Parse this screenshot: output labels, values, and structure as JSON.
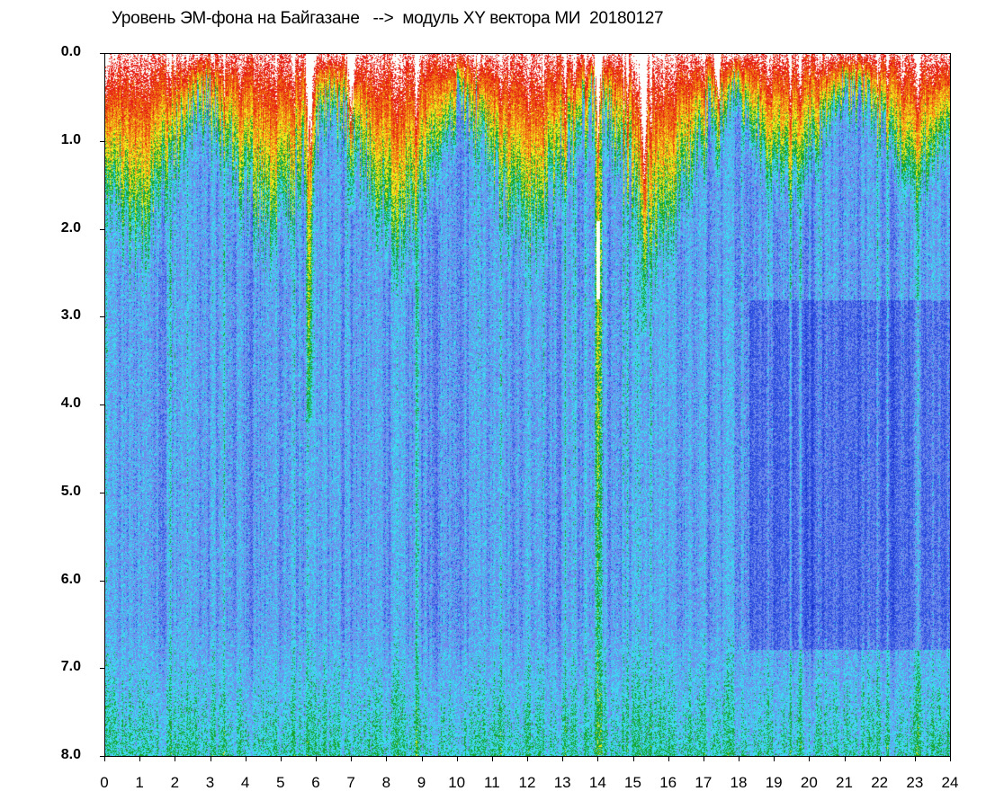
{
  "chart_data": {
    "type": "heatmap",
    "title": "Уровень ЭМ-фона на Байгазане   -->  модуль XY вектора МИ  20180127",
    "xlabel": "",
    "ylabel": "",
    "xlim": [
      0,
      24
    ],
    "ylim": [
      0,
      8
    ],
    "y_axis_inverted": true,
    "x_ticks": [
      "0",
      "1",
      "2",
      "3",
      "4",
      "5",
      "6",
      "7",
      "8",
      "9",
      "10",
      "11",
      "12",
      "13",
      "14",
      "15",
      "16",
      "17",
      "18",
      "19",
      "20",
      "21",
      "22",
      "23",
      "24"
    ],
    "y_ticks": [
      "0.0",
      "1.0",
      "2.0",
      "3.0",
      "4.0",
      "5.0",
      "6.0",
      "7.0",
      "8.0"
    ],
    "grid": false,
    "colormap": [
      "#1428c8",
      "#2f52e0",
      "#6f8cec",
      "#3fd8f0",
      "#16a530",
      "#f0e81c",
      "#f07a14",
      "#e61e14",
      "#ffffff"
    ],
    "intense_bands": [
      {
        "hour": 5.8,
        "depth": 4.2
      },
      {
        "hour": 7.0,
        "depth": 1.8
      },
      {
        "hour": 14.0,
        "depth": 8.0
      },
      {
        "hour": 15.3,
        "depth": 3.2
      },
      {
        "hour": 17.4,
        "depth": 1.4
      }
    ]
  }
}
